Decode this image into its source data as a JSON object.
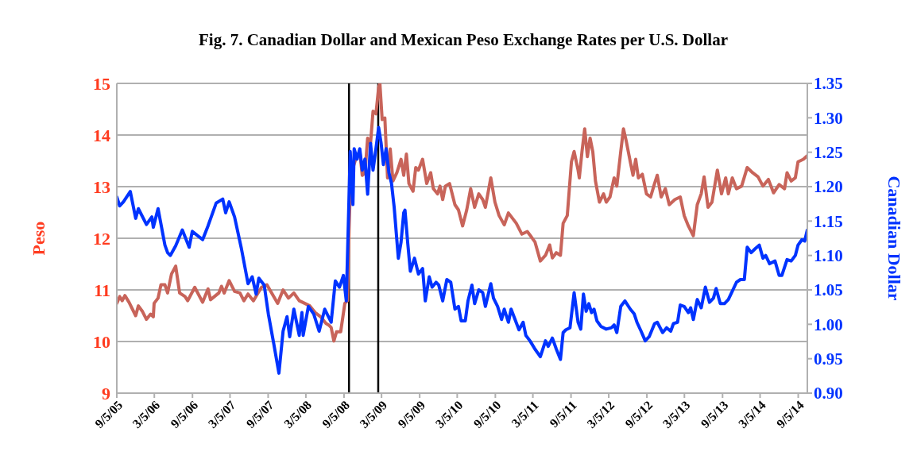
{
  "chart_data": {
    "type": "line",
    "title": "Fig. 7. Canadian Dollar and Mexican Peso Exchange Rates per U.S. Dollar",
    "ylabel": "Peso",
    "y2label": "Canadian Dollar",
    "grid": "y",
    "marker": "none",
    "line_style": "solid",
    "xlim": [
      "2005-09-05",
      "2014-10-19"
    ],
    "xticks": [
      {
        "value": "2005-09-05",
        "label": "9/5/05"
      },
      {
        "value": "2006-03-05",
        "label": "3/5/06"
      },
      {
        "value": "2006-09-05",
        "label": "9/5/06"
      },
      {
        "value": "2007-03-05",
        "label": "3/5/07"
      },
      {
        "value": "2007-09-05",
        "label": "9/5/07"
      },
      {
        "value": "2008-03-05",
        "label": "3/5/08"
      },
      {
        "value": "2008-09-05",
        "label": "9/5/08"
      },
      {
        "value": "2009-03-05",
        "label": "3/5/09"
      },
      {
        "value": "2009-09-05",
        "label": "9/5/09"
      },
      {
        "value": "2010-03-05",
        "label": "3/5/10"
      },
      {
        "value": "2010-09-05",
        "label": "9/5/10"
      },
      {
        "value": "2011-03-05",
        "label": "3/5/11"
      },
      {
        "value": "2011-09-05",
        "label": "9/5/11"
      },
      {
        "value": "2012-03-05",
        "label": "3/5/12"
      },
      {
        "value": "2012-09-05",
        "label": "9/5/12"
      },
      {
        "value": "2013-03-05",
        "label": "3/5/13"
      },
      {
        "value": "2013-09-05",
        "label": "9/5/13"
      },
      {
        "value": "2014-03-05",
        "label": "3/5/14"
      },
      {
        "value": "2014-09-05",
        "label": "9/5/14"
      }
    ],
    "ylim": [
      9,
      15
    ],
    "yticks": [
      9,
      10,
      11,
      12,
      13,
      14,
      15
    ],
    "y2lim": [
      0.9,
      1.35
    ],
    "y2ticks": [
      {
        "value": 0.9,
        "label": "0.90"
      },
      {
        "value": 0.95,
        "label": "0.95"
      },
      {
        "value": 1.0,
        "label": "1.00"
      },
      {
        "value": 1.05,
        "label": "1.05"
      },
      {
        "value": 1.1,
        "label": "1.10"
      },
      {
        "value": 1.15,
        "label": "1.15"
      },
      {
        "value": 1.2,
        "label": "1.20"
      },
      {
        "value": 1.25,
        "label": "1.25"
      },
      {
        "value": 1.3,
        "label": "1.30"
      },
      {
        "value": 1.35,
        "label": "1.35"
      }
    ],
    "ref_lines": [
      {
        "axis": "x",
        "value": "2008-09-29",
        "color": "#000000"
      },
      {
        "axis": "x",
        "value": "2009-02-17",
        "color": "#000000"
      }
    ],
    "series": [
      {
        "color": "#c8645a",
        "x": [
          "2005-09-05",
          "2005-09-19",
          "2005-10-01",
          "2005-10-14",
          "2005-11-03",
          "2005-12-05",
          "2005-12-18",
          "2006-01-07",
          "2006-01-26",
          "2006-02-15",
          "2006-02-28",
          "2006-03-04",
          "2006-03-23",
          "2006-04-06",
          "2006-04-25",
          "2006-05-08",
          "2006-05-27",
          "2006-06-16",
          "2006-07-05",
          "2006-07-31",
          "2006-08-13",
          "2006-09-16",
          "2006-10-24",
          "2006-11-19",
          "2006-12-01",
          "2007-01-10",
          "2007-01-23",
          "2007-02-05",
          "2007-03-01",
          "2007-03-27",
          "2007-04-22",
          "2007-05-11",
          "2007-05-31",
          "2007-06-26",
          "2007-07-15",
          "2007-08-04",
          "2007-08-30",
          "2007-09-25",
          "2007-10-21",
          "2007-11-16",
          "2007-12-12",
          "2008-01-07",
          "2008-02-02",
          "2008-02-28",
          "2008-03-24",
          "2008-04-19",
          "2008-05-15",
          "2008-06-10",
          "2008-06-23",
          "2008-07-05",
          "2008-07-18",
          "2008-07-31",
          "2008-08-20",
          "2008-09-09",
          "2008-09-22",
          "2008-09-29",
          "2008-10-05",
          "2008-10-11",
          "2008-10-31",
          "2008-11-20",
          "2008-12-02",
          "2008-12-15",
          "2008-12-28",
          "2009-01-11",
          "2009-01-23",
          "2009-02-06",
          "2009-02-19",
          "2009-02-25",
          "2009-03-08",
          "2009-03-21",
          "2009-04-03",
          "2009-04-16",
          "2009-04-29",
          "2009-05-18",
          "2009-06-07",
          "2009-06-20",
          "2009-07-03",
          "2009-07-15",
          "2009-08-04",
          "2009-08-17",
          "2009-08-30",
          "2009-09-19",
          "2009-10-09",
          "2009-10-28",
          "2009-11-10",
          "2009-11-30",
          "2009-12-12",
          "2009-12-25",
          "2010-01-07",
          "2010-01-27",
          "2010-02-22",
          "2010-03-11",
          "2010-03-31",
          "2010-04-20",
          "2010-05-09",
          "2010-05-28",
          "2010-06-17",
          "2010-07-06",
          "2010-07-19",
          "2010-08-14",
          "2010-09-03",
          "2010-09-23",
          "2010-10-18",
          "2010-11-07",
          "2010-11-26",
          "2010-12-15",
          "2011-01-11",
          "2011-02-06",
          "2011-02-25",
          "2011-03-15",
          "2011-04-10",
          "2011-05-05",
          "2011-05-25",
          "2011-06-07",
          "2011-06-26",
          "2011-07-16",
          "2011-07-29",
          "2011-08-18",
          "2011-09-07",
          "2011-09-20",
          "2011-10-09",
          "2011-10-15",
          "2011-10-28",
          "2011-11-10",
          "2011-11-23",
          "2011-12-06",
          "2011-12-19",
          "2012-01-01",
          "2012-01-20",
          "2012-02-09",
          "2012-02-22",
          "2012-03-11",
          "2012-03-31",
          "2012-04-13",
          "2012-05-02",
          "2012-05-15",
          "2012-05-28",
          "2012-06-17",
          "2012-06-30",
          "2012-07-13",
          "2012-07-26",
          "2012-08-14",
          "2012-09-03",
          "2012-09-23",
          "2012-10-12",
          "2012-10-25",
          "2012-11-13",
          "2012-12-03",
          "2012-12-22",
          "2013-01-18",
          "2013-02-13",
          "2013-03-04",
          "2013-03-24",
          "2013-04-17",
          "2013-05-06",
          "2013-05-25",
          "2013-06-08",
          "2013-06-27",
          "2013-07-16",
          "2013-08-11",
          "2013-08-31",
          "2013-09-20",
          "2013-10-03",
          "2013-10-22",
          "2013-11-11",
          "2013-12-06",
          "2014-01-02",
          "2014-01-28",
          "2014-02-23",
          "2014-03-19",
          "2014-04-14",
          "2014-05-09",
          "2014-06-05",
          "2014-07-01",
          "2014-07-13",
          "2014-08-02",
          "2014-08-22",
          "2014-09-04",
          "2014-09-30",
          "2014-10-19"
        ],
        "values": [
          10.74,
          10.87,
          10.79,
          10.89,
          10.76,
          10.5,
          10.69,
          10.58,
          10.43,
          10.53,
          10.48,
          10.74,
          10.84,
          11.1,
          11.1,
          10.94,
          11.31,
          11.46,
          10.94,
          10.87,
          10.79,
          11.05,
          10.76,
          11.02,
          10.81,
          10.94,
          11.07,
          10.94,
          11.18,
          10.97,
          10.94,
          10.79,
          10.92,
          10.79,
          10.92,
          11.05,
          11.1,
          10.92,
          10.74,
          11.0,
          10.84,
          10.94,
          10.79,
          10.74,
          10.69,
          10.56,
          10.48,
          10.35,
          10.32,
          10.27,
          10.01,
          10.19,
          10.19,
          10.74,
          10.79,
          12.13,
          12.91,
          13.27,
          13.53,
          13.68,
          13.22,
          13.27,
          13.94,
          13.84,
          14.46,
          14.41,
          14.92,
          15.0,
          14.3,
          14.33,
          13.17,
          13.73,
          13.11,
          13.27,
          13.53,
          13.22,
          13.63,
          13.06,
          12.91,
          13.37,
          13.32,
          13.53,
          13.06,
          13.27,
          12.96,
          12.86,
          13.01,
          12.75,
          13.01,
          13.06,
          12.65,
          12.55,
          12.24,
          12.55,
          12.96,
          12.6,
          12.86,
          12.75,
          12.6,
          13.17,
          12.7,
          12.44,
          12.26,
          12.49,
          12.39,
          12.29,
          12.08,
          12.13,
          12.03,
          11.93,
          11.56,
          11.67,
          11.87,
          11.62,
          11.72,
          11.67,
          12.29,
          12.44,
          13.48,
          13.68,
          13.32,
          13.17,
          13.68,
          14.12,
          13.58,
          13.94,
          13.68,
          13.11,
          12.7,
          12.86,
          12.7,
          12.8,
          13.17,
          13.01,
          13.68,
          14.12,
          13.89,
          13.48,
          13.22,
          13.53,
          13.17,
          13.24,
          12.86,
          12.8,
          13.06,
          13.22,
          12.8,
          12.96,
          12.65,
          12.75,
          12.8,
          12.44,
          12.24,
          12.05,
          12.65,
          12.86,
          13.19,
          12.6,
          12.7,
          13.32,
          12.86,
          13.17,
          12.86,
          13.17,
          12.96,
          13.01,
          13.37,
          13.27,
          13.19,
          13.01,
          13.14,
          12.88,
          13.04,
          12.96,
          13.27,
          13.11,
          13.17,
          13.48,
          13.53,
          13.6
        ]
      },
      {
        "color": "#0033ff",
        "axis": "y2",
        "x": [
          "2005-09-05",
          "2005-09-19",
          "2005-10-07",
          "2005-11-09",
          "2005-12-05",
          "2005-12-18",
          "2006-01-26",
          "2006-02-21",
          "2006-02-28",
          "2006-03-23",
          "2006-04-25",
          "2006-05-08",
          "2006-05-21",
          "2006-06-16",
          "2006-07-18",
          "2006-08-20",
          "2006-09-04",
          "2006-10-24",
          "2006-11-19",
          "2006-12-28",
          "2007-01-29",
          "2007-02-12",
          "2007-03-01",
          "2007-03-27",
          "2007-04-29",
          "2007-05-31",
          "2007-06-20",
          "2007-07-09",
          "2007-07-22",
          "2007-08-17",
          "2007-09-06",
          "2007-10-02",
          "2007-10-27",
          "2007-11-16",
          "2007-12-05",
          "2007-12-18",
          "2008-01-07",
          "2008-02-02",
          "2008-02-15",
          "2008-02-21",
          "2008-03-17",
          "2008-04-12",
          "2008-05-08",
          "2008-06-04",
          "2008-07-05",
          "2008-07-25",
          "2008-08-14",
          "2008-09-02",
          "2008-09-16",
          "2008-10-05",
          "2008-10-18",
          "2008-10-24",
          "2008-11-07",
          "2008-11-20",
          "2008-12-02",
          "2008-12-15",
          "2008-12-28",
          "2009-01-11",
          "2009-01-23",
          "2009-02-06",
          "2009-02-19",
          "2009-03-03",
          "2009-03-14",
          "2009-03-27",
          "2009-04-10",
          "2009-04-22",
          "2009-05-05",
          "2009-05-25",
          "2009-06-07",
          "2009-06-20",
          "2009-06-26",
          "2009-07-09",
          "2009-07-22",
          "2009-08-11",
          "2009-08-30",
          "2009-09-19",
          "2009-10-02",
          "2009-10-21",
          "2009-11-04",
          "2009-11-23",
          "2009-12-06",
          "2009-12-25",
          "2010-01-14",
          "2010-02-02",
          "2010-02-22",
          "2010-03-11",
          "2010-03-24",
          "2010-04-13",
          "2010-04-26",
          "2010-05-15",
          "2010-05-28",
          "2010-06-17",
          "2010-07-06",
          "2010-07-19",
          "2010-08-14",
          "2010-08-27",
          "2010-09-16",
          "2010-10-05",
          "2010-10-18",
          "2010-11-07",
          "2010-11-20",
          "2010-12-09",
          "2010-12-28",
          "2011-01-17",
          "2011-01-30",
          "2011-02-19",
          "2011-03-15",
          "2011-04-10",
          "2011-05-05",
          "2011-05-18",
          "2011-06-07",
          "2011-06-26",
          "2011-07-16",
          "2011-07-29",
          "2011-08-11",
          "2011-08-31",
          "2011-09-20",
          "2011-10-09",
          "2011-10-22",
          "2011-11-04",
          "2011-11-17",
          "2011-11-30",
          "2011-12-13",
          "2011-12-25",
          "2012-01-08",
          "2012-01-27",
          "2012-02-22",
          "2012-03-18",
          "2012-03-31",
          "2012-04-13",
          "2012-05-02",
          "2012-05-22",
          "2012-06-17",
          "2012-07-06",
          "2012-07-19",
          "2012-08-08",
          "2012-08-28",
          "2012-09-16",
          "2012-10-12",
          "2012-10-25",
          "2012-11-20",
          "2012-12-09",
          "2012-12-29",
          "2013-01-11",
          "2013-01-31",
          "2013-02-13",
          "2013-03-04",
          "2013-03-24",
          "2013-04-04",
          "2013-04-17",
          "2013-05-06",
          "2013-05-25",
          "2013-06-14",
          "2013-07-04",
          "2013-07-23",
          "2013-08-05",
          "2013-08-25",
          "2013-09-14",
          "2013-10-03",
          "2013-10-22",
          "2013-11-11",
          "2013-11-30",
          "2013-12-19",
          "2014-01-02",
          "2014-01-21",
          "2014-02-10",
          "2014-03-01",
          "2014-03-19",
          "2014-04-01",
          "2014-04-20",
          "2014-05-16",
          "2014-06-05",
          "2014-06-18",
          "2014-07-13",
          "2014-08-02",
          "2014-08-22",
          "2014-09-04",
          "2014-09-23",
          "2014-10-06",
          "2014-10-19"
        ],
        "values": [
          1.185,
          1.172,
          1.178,
          1.193,
          1.154,
          1.168,
          1.145,
          1.156,
          1.141,
          1.168,
          1.115,
          1.104,
          1.1,
          1.114,
          1.137,
          1.112,
          1.135,
          1.123,
          1.143,
          1.176,
          1.182,
          1.162,
          1.178,
          1.156,
          1.11,
          1.059,
          1.069,
          1.044,
          1.067,
          1.057,
          1.015,
          0.972,
          0.929,
          0.99,
          1.011,
          0.982,
          1.022,
          0.984,
          1.017,
          0.984,
          1.026,
          1.015,
          0.99,
          1.022,
          1.003,
          1.063,
          1.054,
          1.071,
          1.034,
          1.251,
          1.174,
          1.255,
          1.24,
          1.255,
          1.224,
          1.24,
          1.189,
          1.263,
          1.224,
          1.255,
          1.286,
          1.263,
          1.232,
          1.255,
          1.22,
          1.205,
          1.17,
          1.096,
          1.119,
          1.162,
          1.166,
          1.119,
          1.077,
          1.096,
          1.073,
          1.081,
          1.034,
          1.069,
          1.054,
          1.061,
          1.057,
          1.034,
          1.065,
          1.061,
          1.022,
          1.026,
          1.005,
          1.005,
          1.034,
          1.057,
          1.03,
          1.05,
          1.046,
          1.026,
          1.059,
          1.038,
          1.026,
          1.007,
          1.022,
          1.003,
          1.022,
          1.007,
          0.992,
          1.003,
          0.984,
          0.976,
          0.964,
          0.953,
          0.976,
          0.968,
          0.98,
          0.964,
          0.949,
          0.988,
          0.992,
          0.995,
          1.046,
          1.003,
          0.993,
          1.044,
          1.019,
          1.03,
          1.017,
          1.022,
          1.005,
          0.997,
          0.993,
          0.995,
          0.999,
          0.988,
          1.026,
          1.034,
          1.022,
          1.015,
          1.003,
          0.99,
          0.976,
          0.982,
          1.001,
          1.003,
          0.988,
          0.995,
          0.99,
          1.001,
          1.003,
          1.028,
          1.026,
          1.017,
          1.024,
          1.007,
          1.036,
          1.024,
          1.054,
          1.032,
          1.038,
          1.052,
          1.03,
          1.03,
          1.036,
          1.048,
          1.061,
          1.065,
          1.065,
          1.112,
          1.104,
          1.11,
          1.115,
          1.096,
          1.1,
          1.088,
          1.092,
          1.071,
          1.071,
          1.094,
          1.092,
          1.1,
          1.115,
          1.123,
          1.121,
          1.137
        ]
      }
    ]
  }
}
